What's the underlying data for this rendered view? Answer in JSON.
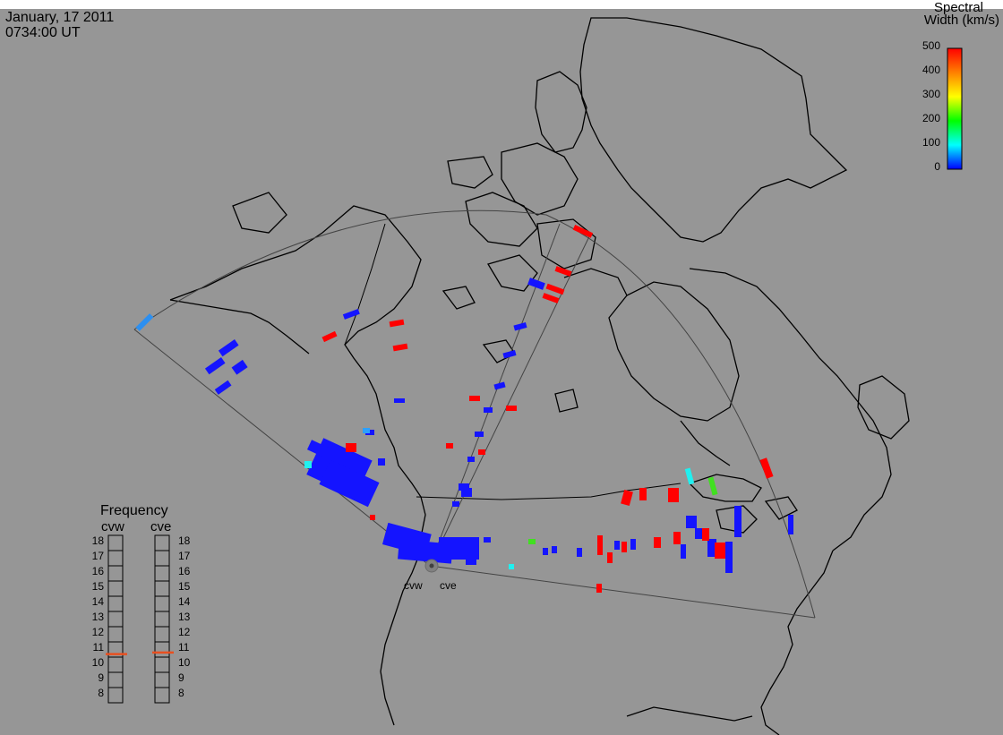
{
  "header": {
    "date": "January, 17 2011",
    "time": "0734:00 UT"
  },
  "colorbar": {
    "title_line1": "Spectral",
    "title_line2": "Width (km/s)",
    "ticks": [
      "500",
      "400",
      "300",
      "200",
      "100",
      "0"
    ]
  },
  "radars": {
    "west": "cvw",
    "east": "cve"
  },
  "frequency": {
    "title": "Frequency",
    "left_label": "cvw",
    "right_label": "cve",
    "scale": [
      "18",
      "17",
      "16",
      "15",
      "14",
      "13",
      "12",
      "11",
      "10",
      "9",
      "8"
    ],
    "cvw_value": 10.7,
    "cve_value": 10.8
  },
  "colors": {
    "background": "#969696",
    "high": "#ff0000",
    "low": "#1414ff",
    "indicator": "#e85020"
  }
}
